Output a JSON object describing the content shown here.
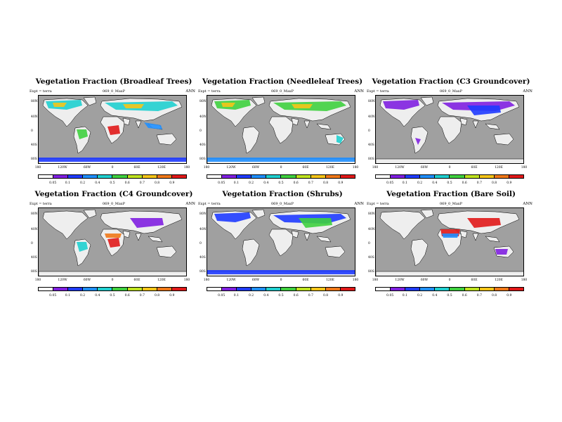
{
  "common": {
    "expt_label": "Expt = terra",
    "run_label": "069_0_MaxP",
    "season": "ANN",
    "lat_ticks": [
      "80N",
      "40N",
      "0",
      "40S",
      "80S"
    ],
    "lon_ticks": [
      "180",
      "120W",
      "60W",
      "0",
      "60E",
      "120E",
      "180"
    ],
    "colorbar_labels": [
      "0.05",
      "0.1",
      "0.2",
      "0.4",
      "0.5",
      "0.6",
      "0.7",
      "0.8",
      "0.9"
    ],
    "colorbar_colors": [
      "#ffffff",
      "#7f1fe0",
      "#1f3bff",
      "#1f8fff",
      "#1fcfcf",
      "#3fd03f",
      "#bfe31f",
      "#f5c518",
      "#f07818",
      "#e01818"
    ],
    "land_color": "#eeeeee",
    "ocean_color": "#a0a0a0"
  },
  "panels": [
    {
      "title": "Vegetation Fraction (Broadleaf Trees)",
      "colorbar_labels": [
        "0.05",
        "0.1",
        "0.2",
        "0.4",
        "0.5",
        "0.6",
        "0.7",
        "0.8",
        "0.9"
      ],
      "overlays": [
        {
          "color": "#1fcfcf",
          "where": "boreal"
        },
        {
          "color": "#f5c518",
          "where": "boreal2"
        },
        {
          "color": "#3fd03f",
          "where": "amazon"
        },
        {
          "color": "#e01818",
          "where": "congo"
        },
        {
          "color": "#1f8fff",
          "where": "seasia"
        },
        {
          "color": "#1f3bff",
          "where": "antarctic"
        }
      ]
    },
    {
      "title": "Vegetation Fraction (Needleleaf Trees)",
      "colorbar_labels": [
        "0.05",
        "0.1",
        "0.2",
        "0.4",
        "0.5",
        "0.6",
        "0.7",
        "0.8",
        "0.9"
      ],
      "overlays": [
        {
          "color": "#3fd03f",
          "where": "boreal"
        },
        {
          "color": "#f5c518",
          "where": "boreal2"
        },
        {
          "color": "#1fcfcf",
          "where": "australia_e"
        },
        {
          "color": "#1f8fff",
          "where": "antarctic"
        }
      ]
    },
    {
      "title": "Vegetation Fraction (C3 Groundcover)",
      "colorbar_labels": [
        "0.05",
        "0.1",
        "0.2",
        "0.4",
        "0.5",
        "0.6",
        "0.7",
        "0.8",
        "0.9"
      ],
      "overlays": [
        {
          "color": "#7f1fe0",
          "where": "boreal"
        },
        {
          "color": "#1f3bff",
          "where": "asia"
        },
        {
          "color": "#7f1fe0",
          "where": "amazon_s"
        }
      ]
    },
    {
      "title": "Vegetation Fraction (C4 Groundcover)",
      "colorbar_labels": [
        "0.05",
        "0.1",
        "0.2",
        "0.4",
        "0.5",
        "0.6",
        "0.7",
        "0.8",
        "0.9"
      ],
      "overlays": [
        {
          "color": "#e01818",
          "where": "congo"
        },
        {
          "color": "#f07818",
          "where": "sahel"
        },
        {
          "color": "#1fcfcf",
          "where": "amazon"
        },
        {
          "color": "#7f1fe0",
          "where": "asia"
        }
      ]
    },
    {
      "title": "Vegetation Fraction (Shrubs)",
      "colorbar_labels": [
        "0.05",
        "0.1",
        "0.2",
        "0.4",
        "0.5",
        "0.6",
        "0.7",
        "0.8",
        "0.9"
      ],
      "overlays": [
        {
          "color": "#1f3bff",
          "where": "boreal"
        },
        {
          "color": "#3fd03f",
          "where": "asia"
        },
        {
          "color": "#1f3bff",
          "where": "antarctic"
        }
      ]
    },
    {
      "title": "Vegetation Fraction (Bare Soil)",
      "colorbar_labels": [
        "0.05",
        "0.1",
        "0.2",
        "0.4",
        "0.5",
        "0.6",
        "0.7",
        "0.8",
        "0.9"
      ],
      "overlays": [
        {
          "color": "#e01818",
          "where": "sahara"
        },
        {
          "color": "#e01818",
          "where": "asia"
        },
        {
          "color": "#1f8fff",
          "where": "sahel"
        },
        {
          "color": "#7f1fe0",
          "where": "australia"
        }
      ]
    }
  ]
}
